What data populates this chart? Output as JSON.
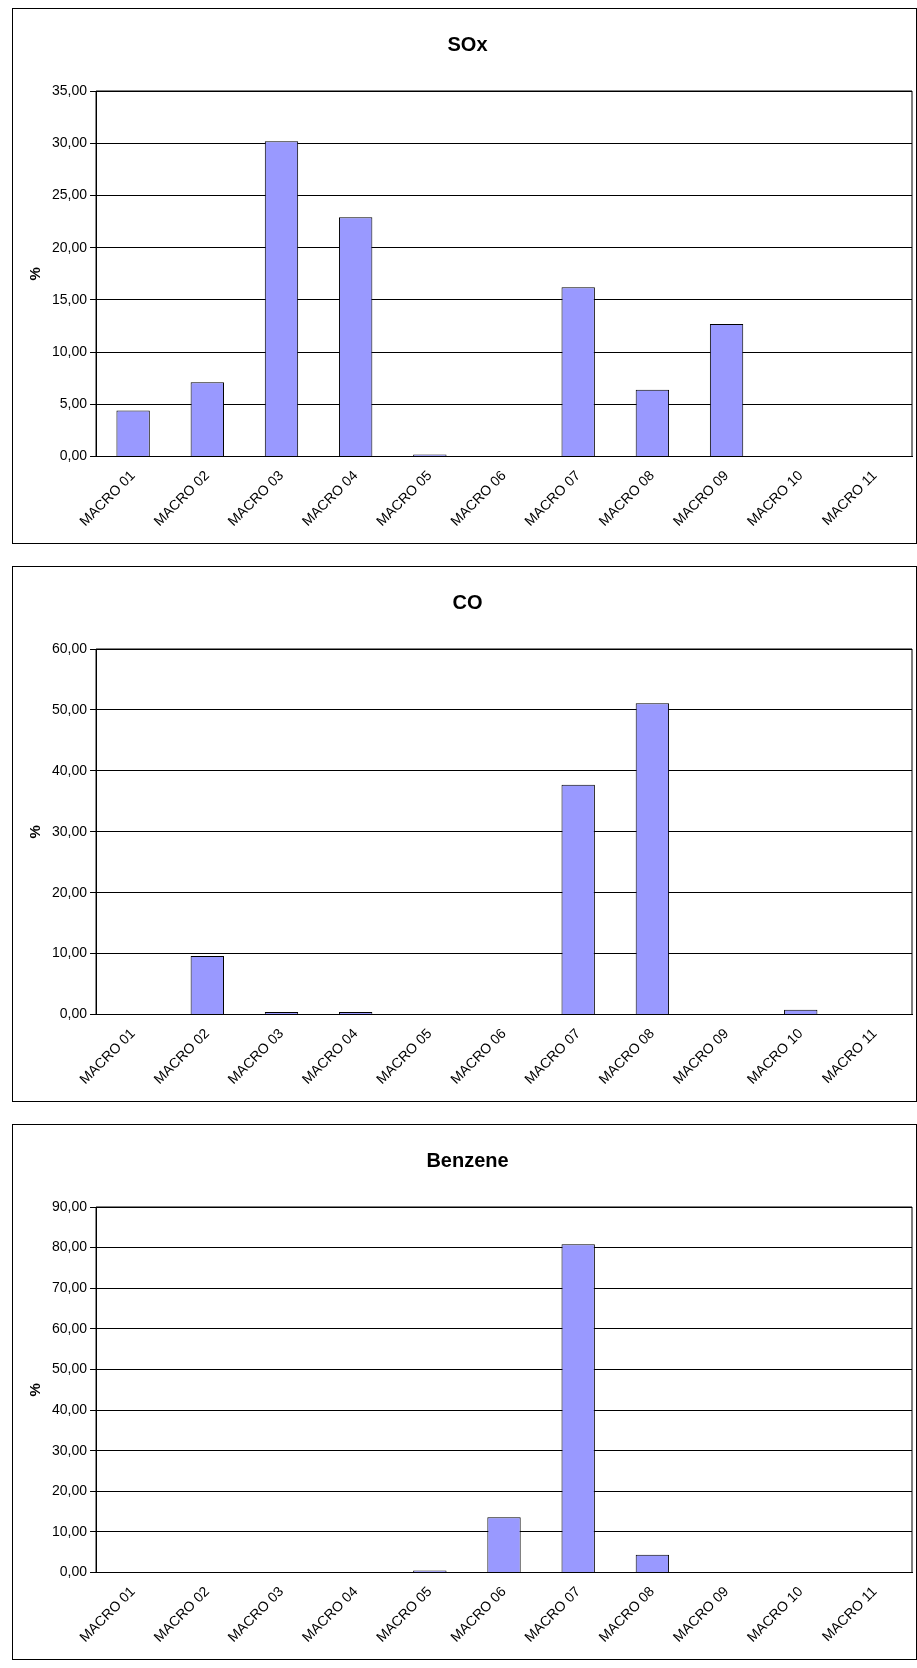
{
  "chart_data": [
    {
      "type": "bar",
      "title": "SOx",
      "ylabel": "%",
      "categories": [
        "MACRO 01",
        "MACRO 02",
        "MACRO 03",
        "MACRO 04",
        "MACRO 05",
        "MACRO 06",
        "MACRO 07",
        "MACRO 08",
        "MACRO 09",
        "MACRO 10",
        "MACRO 11"
      ],
      "values": [
        4.4,
        7.1,
        30.2,
        22.9,
        0.2,
        0,
        16.2,
        6.4,
        12.7,
        0,
        0
      ],
      "color": "#9999ff",
      "ylim": [
        0,
        35
      ],
      "yticks": [
        {
          "value": 0,
          "label": "0,00"
        },
        {
          "value": 5,
          "label": "5,00"
        },
        {
          "value": 10,
          "label": "10,00"
        },
        {
          "value": 15,
          "label": "15,00"
        },
        {
          "value": 20,
          "label": "20,00"
        },
        {
          "value": 25,
          "label": "25,00"
        },
        {
          "value": 30,
          "label": "30,00"
        },
        {
          "value": 35,
          "label": "35,00"
        }
      ],
      "grid": "y"
    },
    {
      "type": "bar",
      "title": "CO",
      "ylabel": "%",
      "categories": [
        "MACRO 01",
        "MACRO 02",
        "MACRO 03",
        "MACRO 04",
        "MACRO 05",
        "MACRO 06",
        "MACRO 07",
        "MACRO 08",
        "MACRO 09",
        "MACRO 10",
        "MACRO 11"
      ],
      "values": [
        0,
        9.6,
        0.4,
        0.4,
        0,
        0,
        37.7,
        51.1,
        0,
        0.8,
        0
      ],
      "color": "#9999ff",
      "ylim": [
        0,
        60
      ],
      "yticks": [
        {
          "value": 0,
          "label": "0,00"
        },
        {
          "value": 10,
          "label": "10,00"
        },
        {
          "value": 20,
          "label": "20,00"
        },
        {
          "value": 30,
          "label": "30,00"
        },
        {
          "value": 40,
          "label": "40,00"
        },
        {
          "value": 50,
          "label": "50,00"
        },
        {
          "value": 60,
          "label": "60,00"
        }
      ],
      "grid": "y"
    },
    {
      "type": "bar",
      "title": "Benzene",
      "ylabel": "%",
      "categories": [
        "MACRO 01",
        "MACRO 02",
        "MACRO 03",
        "MACRO 04",
        "MACRO 05",
        "MACRO 06",
        "MACRO 07",
        "MACRO 08",
        "MACRO 09",
        "MACRO 10",
        "MACRO 11"
      ],
      "values": [
        0,
        0,
        0,
        0,
        0.5,
        13.6,
        80.8,
        4.4,
        0,
        0,
        0
      ],
      "color": "#9999ff",
      "ylim": [
        0,
        90
      ],
      "yticks": [
        {
          "value": 0,
          "label": "0,00"
        },
        {
          "value": 10,
          "label": "10,00"
        },
        {
          "value": 20,
          "label": "20,00"
        },
        {
          "value": 30,
          "label": "30,00"
        },
        {
          "value": 40,
          "label": "40,00"
        },
        {
          "value": 50,
          "label": "50,00"
        },
        {
          "value": 60,
          "label": "60,00"
        },
        {
          "value": 70,
          "label": "70,00"
        },
        {
          "value": 80,
          "label": "80,00"
        },
        {
          "value": 90,
          "label": "90,00"
        }
      ],
      "grid": "y"
    }
  ]
}
